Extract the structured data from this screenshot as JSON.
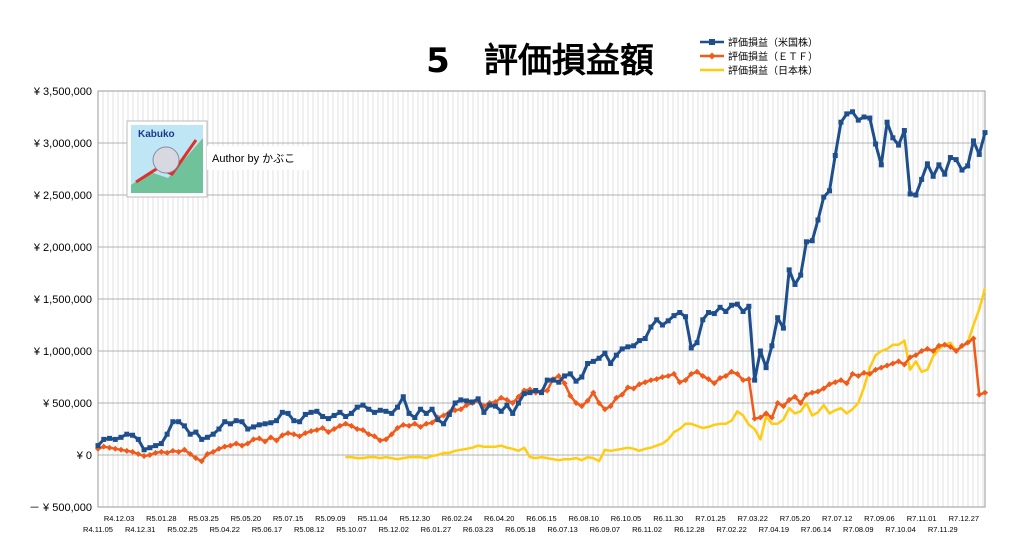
{
  "chart_data": {
    "type": "line",
    "title": "5　評価損益額",
    "author": "Author by かぶこ",
    "logo_text": "Kabuko",
    "ylim": [
      -500000,
      3500000
    ],
    "y_ticks": [
      {
        "value": 3500000,
        "label": "¥ 3,500,000"
      },
      {
        "value": 3000000,
        "label": "¥ 3,000,000"
      },
      {
        "value": 2500000,
        "label": "¥ 2,500,000"
      },
      {
        "value": 2000000,
        "label": "¥ 2,000,000"
      },
      {
        "value": 1500000,
        "label": "¥ 1,500,000"
      },
      {
        "value": 1000000,
        "label": "¥ 1,000,000"
      },
      {
        "value": 500000,
        "label": "¥ 500,000"
      },
      {
        "value": 0,
        "label": "¥ 0"
      },
      {
        "value": -500000,
        "label": "－ ¥ 500,000"
      }
    ],
    "x_label_rows": [
      [
        "R4.12.03",
        "R5.01.28",
        "R5.03.25",
        "R5.05.20",
        "R5.07.15",
        "R5.09.09",
        "R5.11.04",
        "R5.12.30",
        "R6.02.24",
        "R6.04.20",
        "R6.06.15",
        "R6.08.10",
        "R6.10.05",
        "R6.11.30",
        "R7.01.25",
        "R7.03.22",
        "R7.05.20",
        "R7.07.12",
        "R7.09.06",
        "R7.11.01",
        "R7.12.27"
      ],
      [
        "R4.11.05",
        "R4.12.31",
        "R5.02.25",
        "R5.04.22",
        "R5.06.17",
        "R5.08.12",
        "R5.10.07",
        "R5.12.02",
        "R6.01.27",
        "R6.03.23",
        "R6.05.18",
        "R6.07.13",
        "R6.09.07",
        "R6.11.02",
        "R6.12.28",
        "R7.02.22",
        "R7.04.19",
        "R7.06.14",
        "R7.08.09",
        "R7.10.04",
        "R7.11.29"
      ]
    ],
    "grid": true,
    "legend_position": "top-right",
    "series": [
      {
        "name": "評価損益（米国株）",
        "color": "#1F4E8C",
        "marker": "square",
        "values": [
          90000,
          150000,
          160000,
          150000,
          170000,
          200000,
          190000,
          150000,
          50000,
          70000,
          90000,
          110000,
          200000,
          320000,
          320000,
          280000,
          200000,
          220000,
          150000,
          170000,
          200000,
          250000,
          320000,
          300000,
          330000,
          320000,
          250000,
          270000,
          290000,
          300000,
          310000,
          330000,
          410000,
          400000,
          330000,
          320000,
          390000,
          410000,
          420000,
          370000,
          350000,
          380000,
          410000,
          370000,
          400000,
          460000,
          480000,
          440000,
          410000,
          430000,
          420000,
          400000,
          460000,
          560000,
          400000,
          360000,
          440000,
          400000,
          440000,
          340000,
          300000,
          390000,
          500000,
          530000,
          520000,
          510000,
          540000,
          410000,
          480000,
          470000,
          420000,
          480000,
          400000,
          500000,
          590000,
          600000,
          620000,
          600000,
          720000,
          720000,
          700000,
          760000,
          780000,
          710000,
          750000,
          880000,
          900000,
          930000,
          980000,
          880000,
          960000,
          1020000,
          1040000,
          1050000,
          1100000,
          1120000,
          1230000,
          1300000,
          1250000,
          1290000,
          1340000,
          1370000,
          1330000,
          1030000,
          1080000,
          1300000,
          1370000,
          1360000,
          1420000,
          1380000,
          1440000,
          1450000,
          1380000,
          1430000,
          720000,
          1000000,
          840000,
          1050000,
          1320000,
          1220000,
          1780000,
          1640000,
          1730000,
          2050000,
          2060000,
          2260000,
          2480000,
          2540000,
          2880000,
          3200000,
          3280000,
          3300000,
          3220000,
          3250000,
          3240000,
          2990000,
          2790000,
          3200000,
          3050000,
          2980000,
          3120000,
          2510000,
          2500000,
          2650000,
          2800000,
          2680000,
          2790000,
          2700000,
          2860000,
          2840000,
          2740000,
          2780000,
          3020000,
          2890000,
          3100000
        ]
      },
      {
        "name": "評価損益（ＥＴＦ）",
        "color": "#F05A1A",
        "marker": "diamond",
        "values": [
          60000,
          80000,
          70000,
          60000,
          50000,
          40000,
          30000,
          10000,
          -10000,
          0,
          20000,
          30000,
          20000,
          40000,
          30000,
          50000,
          10000,
          -30000,
          -60000,
          10000,
          30000,
          60000,
          80000,
          90000,
          110000,
          90000,
          110000,
          150000,
          160000,
          130000,
          170000,
          140000,
          190000,
          210000,
          200000,
          180000,
          210000,
          230000,
          240000,
          260000,
          220000,
          250000,
          280000,
          300000,
          280000,
          250000,
          240000,
          200000,
          180000,
          140000,
          150000,
          200000,
          260000,
          290000,
          280000,
          300000,
          270000,
          300000,
          310000,
          360000,
          380000,
          410000,
          430000,
          440000,
          480000,
          500000,
          520000,
          470000,
          500000,
          510000,
          550000,
          530000,
          500000,
          560000,
          620000,
          630000,
          600000,
          610000,
          620000,
          730000,
          760000,
          690000,
          570000,
          500000,
          470000,
          520000,
          600000,
          500000,
          440000,
          470000,
          550000,
          580000,
          650000,
          640000,
          680000,
          700000,
          720000,
          730000,
          750000,
          760000,
          780000,
          700000,
          720000,
          780000,
          800000,
          760000,
          730000,
          690000,
          740000,
          760000,
          800000,
          780000,
          720000,
          730000,
          350000,
          360000,
          400000,
          360000,
          500000,
          470000,
          530000,
          560000,
          500000,
          580000,
          600000,
          610000,
          640000,
          680000,
          700000,
          720000,
          690000,
          780000,
          760000,
          790000,
          780000,
          820000,
          840000,
          860000,
          880000,
          900000,
          870000,
          940000,
          960000,
          1000000,
          1020000,
          1000000,
          1050000,
          1060000,
          1040000,
          1000000,
          1050000,
          1080000,
          1120000,
          580000,
          600000
        ]
      },
      {
        "name": "評価損益（日本株）",
        "color": "#FFCC11",
        "marker": "none",
        "values": [
          null,
          null,
          null,
          null,
          null,
          null,
          null,
          null,
          null,
          null,
          null,
          null,
          null,
          null,
          null,
          null,
          null,
          null,
          null,
          null,
          null,
          null,
          null,
          null,
          null,
          null,
          null,
          null,
          null,
          null,
          null,
          null,
          null,
          null,
          null,
          null,
          null,
          null,
          null,
          null,
          null,
          null,
          null,
          -20000,
          -20000,
          -30000,
          -30000,
          -20000,
          -20000,
          -30000,
          -20000,
          -30000,
          -40000,
          -30000,
          -20000,
          -20000,
          -20000,
          -30000,
          -10000,
          0,
          20000,
          20000,
          40000,
          50000,
          60000,
          70000,
          90000,
          80000,
          80000,
          80000,
          90000,
          70000,
          60000,
          40000,
          70000,
          -20000,
          -30000,
          -20000,
          -30000,
          -40000,
          -50000,
          -40000,
          -40000,
          -30000,
          -50000,
          -20000,
          -30000,
          -60000,
          50000,
          40000,
          50000,
          60000,
          70000,
          60000,
          40000,
          60000,
          70000,
          90000,
          110000,
          150000,
          220000,
          250000,
          300000,
          300000,
          280000,
          260000,
          270000,
          290000,
          300000,
          300000,
          330000,
          420000,
          380000,
          290000,
          250000,
          150000,
          370000,
          300000,
          300000,
          340000,
          450000,
          400000,
          420000,
          500000,
          380000,
          410000,
          480000,
          400000,
          430000,
          450000,
          400000,
          440000,
          500000,
          650000,
          840000,
          960000,
          1000000,
          1020000,
          1060000,
          1060000,
          1100000,
          820000,
          900000,
          800000,
          820000,
          950000,
          1020000,
          1060000,
          1080000,
          1000000,
          1040000,
          1080000,
          1250000,
          1400000,
          1600000
        ]
      }
    ]
  }
}
